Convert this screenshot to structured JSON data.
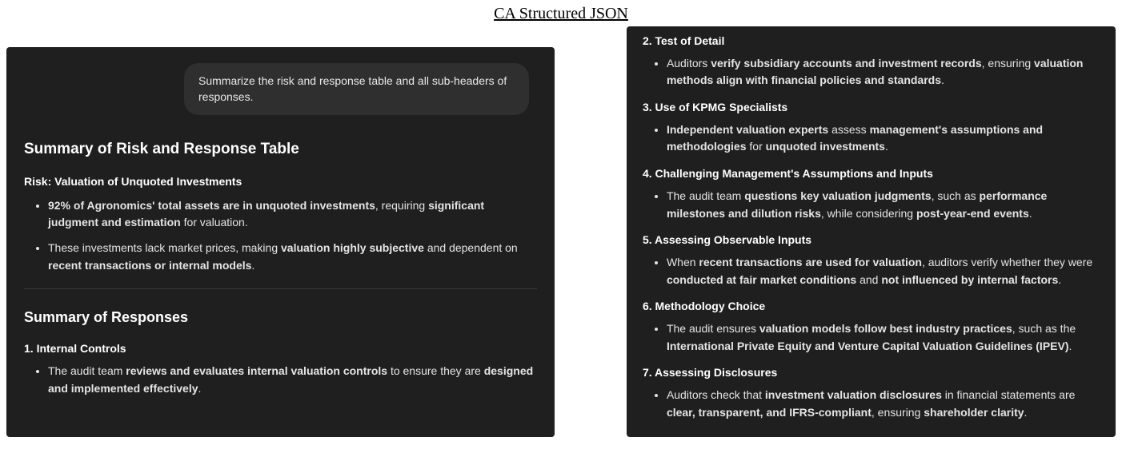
{
  "doc_title": "CA Structured JSON",
  "prompt": "Summarize the risk and response table and all sub-headers of responses.",
  "left": {
    "summary_heading": "Summary of Risk and Response Table",
    "risk_heading": "Risk: Valuation of Unquoted Investments",
    "risk_bullets": [
      {
        "parts": [
          {
            "b": true,
            "t": "92% of Agronomics' total assets are in unquoted investments"
          },
          {
            "b": false,
            "t": ", requiring "
          },
          {
            "b": true,
            "t": "significant judgment and estimation"
          },
          {
            "b": false,
            "t": " for valuation."
          }
        ]
      },
      {
        "parts": [
          {
            "b": false,
            "t": "These investments lack market prices, making "
          },
          {
            "b": true,
            "t": "valuation highly subjective"
          },
          {
            "b": false,
            "t": " and dependent on "
          },
          {
            "b": true,
            "t": "recent transactions or internal models"
          },
          {
            "b": false,
            "t": "."
          }
        ]
      }
    ],
    "responses_heading": "Summary of Responses",
    "resp1_heading": "1. Internal Controls",
    "resp1_bullets": [
      {
        "parts": [
          {
            "b": false,
            "t": "The audit team "
          },
          {
            "b": true,
            "t": "reviews and evaluates internal valuation controls"
          },
          {
            "b": false,
            "t": " to ensure they are "
          },
          {
            "b": true,
            "t": "designed and implemented effectively"
          },
          {
            "b": false,
            "t": "."
          }
        ]
      }
    ]
  },
  "right": [
    {
      "heading": "2. Test of Detail",
      "bullets": [
        {
          "parts": [
            {
              "b": false,
              "t": "Auditors "
            },
            {
              "b": true,
              "t": "verify subsidiary accounts and investment records"
            },
            {
              "b": false,
              "t": ", ensuring "
            },
            {
              "b": true,
              "t": "valuation methods align with financial policies and standards"
            },
            {
              "b": false,
              "t": "."
            }
          ]
        }
      ]
    },
    {
      "heading": "3. Use of KPMG Specialists",
      "bullets": [
        {
          "parts": [
            {
              "b": true,
              "t": "Independent valuation experts"
            },
            {
              "b": false,
              "t": " assess "
            },
            {
              "b": true,
              "t": "management's assumptions and methodologies"
            },
            {
              "b": false,
              "t": " for "
            },
            {
              "b": true,
              "t": "unquoted investments"
            },
            {
              "b": false,
              "t": "."
            }
          ]
        }
      ]
    },
    {
      "heading": "4. Challenging Management's Assumptions and Inputs",
      "bullets": [
        {
          "parts": [
            {
              "b": false,
              "t": "The audit team "
            },
            {
              "b": true,
              "t": "questions key valuation judgments"
            },
            {
              "b": false,
              "t": ", such as "
            },
            {
              "b": true,
              "t": "performance milestones and dilution risks"
            },
            {
              "b": false,
              "t": ", while considering "
            },
            {
              "b": true,
              "t": "post-year-end events"
            },
            {
              "b": false,
              "t": "."
            }
          ]
        }
      ]
    },
    {
      "heading": "5. Assessing Observable Inputs",
      "bullets": [
        {
          "parts": [
            {
              "b": false,
              "t": "When "
            },
            {
              "b": true,
              "t": "recent transactions are used for valuation"
            },
            {
              "b": false,
              "t": ", auditors verify whether they were "
            },
            {
              "b": true,
              "t": "conducted at fair market conditions"
            },
            {
              "b": false,
              "t": " and "
            },
            {
              "b": true,
              "t": "not influenced by internal factors"
            },
            {
              "b": false,
              "t": "."
            }
          ]
        }
      ]
    },
    {
      "heading": "6. Methodology Choice",
      "bullets": [
        {
          "parts": [
            {
              "b": false,
              "t": "The audit ensures "
            },
            {
              "b": true,
              "t": "valuation models follow best industry practices"
            },
            {
              "b": false,
              "t": ", such as the "
            },
            {
              "b": true,
              "t": "International Private Equity and Venture Capital Valuation Guidelines (IPEV)"
            },
            {
              "b": false,
              "t": "."
            }
          ]
        }
      ]
    },
    {
      "heading": "7. Assessing Disclosures",
      "bullets": [
        {
          "parts": [
            {
              "b": false,
              "t": "Auditors check that "
            },
            {
              "b": true,
              "t": "investment valuation disclosures"
            },
            {
              "b": false,
              "t": " in financial statements are "
            },
            {
              "b": true,
              "t": "clear, transparent, and IFRS-compliant"
            },
            {
              "b": false,
              "t": ", ensuring "
            },
            {
              "b": true,
              "t": "shareholder clarity"
            },
            {
              "b": false,
              "t": "."
            }
          ]
        }
      ]
    }
  ],
  "colors": {
    "panel_bg": "#1f1f1f",
    "bubble_bg": "#2f2f2f",
    "text": "#e8e8e8",
    "heading": "#ffffff",
    "page_bg": "#ffffff"
  }
}
